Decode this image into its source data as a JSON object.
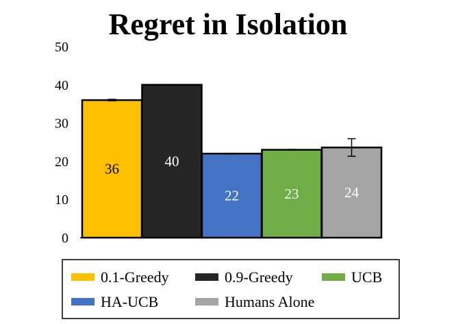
{
  "chart_data": {
    "type": "bar",
    "title": "Regret in Isolation",
    "xlabel": "",
    "ylabel": "",
    "ylim": [
      0,
      50
    ],
    "yticks": [
      0,
      10,
      20,
      30,
      40,
      50
    ],
    "grid": false,
    "legend_position": "bottom",
    "series": [
      {
        "name": "0.1-Greedy",
        "value": 36,
        "label": "36",
        "error": 0.2,
        "color": "#FFC000",
        "label_color": "#000000"
      },
      {
        "name": "0.9-Greedy",
        "value": 40,
        "label": "40",
        "error": 0.1,
        "color": "#262626",
        "label_color": "#FFFFFF"
      },
      {
        "name": "HA-UCB",
        "value": 22,
        "label": "22",
        "error": 0.1,
        "color": "#4472C4",
        "label_color": "#FFFFFF"
      },
      {
        "name": "UCB",
        "value": 23,
        "label": "23",
        "error": 0.1,
        "color": "#70AD47",
        "label_color": "#FFFFFF"
      },
      {
        "name": "Humans Alone",
        "value": 23.6,
        "label": "24",
        "error": 2.3,
        "color": "#A5A5A5",
        "label_color": "#FFFFFF"
      }
    ],
    "legend_order": [
      [
        "0.1-Greedy",
        "0.9-Greedy",
        "UCB"
      ],
      [
        "HA-UCB",
        "Humans Alone"
      ]
    ]
  }
}
